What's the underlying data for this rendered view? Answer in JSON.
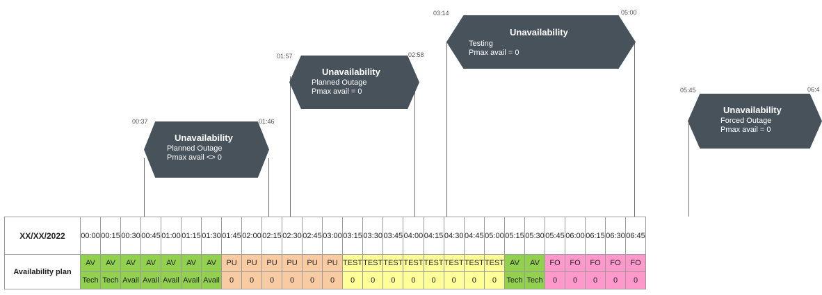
{
  "header": {
    "date": "XX/XX/2022"
  },
  "row_label": "Availability plan",
  "times": [
    "00:00",
    "00:15",
    "00:30",
    "00:45",
    "01:00",
    "01:15",
    "01:30",
    "01:45",
    "02:00",
    "02:15",
    "02:30",
    "02:45",
    "03:00",
    "03:15",
    "03:30",
    "03:45",
    "04:00",
    "04:15",
    "04:30",
    "04:45",
    "05:00",
    "05:15",
    "05:30",
    "05:45",
    "06:00",
    "06:15",
    "06:30",
    "06:45"
  ],
  "status_row": [
    {
      "text": "AV",
      "kind": "AV"
    },
    {
      "text": "AV",
      "kind": "AV"
    },
    {
      "text": "AV",
      "kind": "AV"
    },
    {
      "text": "AV",
      "kind": "AV"
    },
    {
      "text": "AV",
      "kind": "AV"
    },
    {
      "text": "AV",
      "kind": "AV"
    },
    {
      "text": "AV",
      "kind": "AV"
    },
    {
      "text": "PU",
      "kind": "PU"
    },
    {
      "text": "PU",
      "kind": "PU"
    },
    {
      "text": "PU",
      "kind": "PU"
    },
    {
      "text": "PU",
      "kind": "PU"
    },
    {
      "text": "PU",
      "kind": "PU"
    },
    {
      "text": "PU",
      "kind": "PU"
    },
    {
      "text": "TEST",
      "kind": "TEST"
    },
    {
      "text": "TEST",
      "kind": "TEST"
    },
    {
      "text": "TEST",
      "kind": "TEST"
    },
    {
      "text": "TEST",
      "kind": "TEST"
    },
    {
      "text": "TEST",
      "kind": "TEST"
    },
    {
      "text": "TEST",
      "kind": "TEST"
    },
    {
      "text": "TEST",
      "kind": "TEST"
    },
    {
      "text": "TEST",
      "kind": "TEST"
    },
    {
      "text": "AV",
      "kind": "AV"
    },
    {
      "text": "AV",
      "kind": "AV"
    },
    {
      "text": "FO",
      "kind": "FO"
    },
    {
      "text": "FO",
      "kind": "FO"
    },
    {
      "text": "FO",
      "kind": "FO"
    },
    {
      "text": "FO",
      "kind": "FO"
    },
    {
      "text": "FO",
      "kind": "FO"
    }
  ],
  "detail_row": [
    {
      "text": "Tech",
      "kind": "Tech"
    },
    {
      "text": "Tech",
      "kind": "Tech"
    },
    {
      "text": "Avail",
      "kind": "Avail"
    },
    {
      "text": "Avail",
      "kind": "Avail"
    },
    {
      "text": "Avail",
      "kind": "Avail"
    },
    {
      "text": "Avail",
      "kind": "Avail"
    },
    {
      "text": "Avail",
      "kind": "Avail"
    },
    {
      "text": "0",
      "kind": "PU"
    },
    {
      "text": "0",
      "kind": "PU"
    },
    {
      "text": "0",
      "kind": "PU"
    },
    {
      "text": "0",
      "kind": "PU"
    },
    {
      "text": "0",
      "kind": "PU"
    },
    {
      "text": "0",
      "kind": "PU"
    },
    {
      "text": "0",
      "kind": "TEST"
    },
    {
      "text": "0",
      "kind": "TEST"
    },
    {
      "text": "0",
      "kind": "TEST"
    },
    {
      "text": "0",
      "kind": "TEST"
    },
    {
      "text": "0",
      "kind": "TEST"
    },
    {
      "text": "0",
      "kind": "TEST"
    },
    {
      "text": "0",
      "kind": "TEST"
    },
    {
      "text": "0",
      "kind": "TEST"
    },
    {
      "text": "Tech",
      "kind": "Tech"
    },
    {
      "text": "Tech",
      "kind": "Tech"
    },
    {
      "text": "0",
      "kind": "FO"
    },
    {
      "text": "0",
      "kind": "FO"
    },
    {
      "text": "0",
      "kind": "FO"
    },
    {
      "text": "0",
      "kind": "FO"
    },
    {
      "text": "0",
      "kind": "FO"
    }
  ],
  "unavailabilities": [
    {
      "title": "Unavailability",
      "line1": "Planned Outage",
      "line2": "Pmax avail <> 0",
      "start": "00:37",
      "end": "01:46"
    },
    {
      "title": "Unavailability",
      "line1": "Planned Outage",
      "line2": "Pmax avail = 0",
      "start": "01:57",
      "end": "02:58"
    },
    {
      "title": "Unavailability",
      "line1": "Testing",
      "line2": "Pmax avail = 0",
      "start": "03:14",
      "end": "05:00"
    },
    {
      "title": "Unavailability",
      "line1": "Forced Outage",
      "line2": "Pmax avail = 0",
      "start": "05:45",
      "end": "06:4"
    }
  ],
  "colors": {
    "box": "#47525a",
    "AV": "#92d050",
    "PU": "#f8cba3",
    "TEST": "#ffff99",
    "FO": "#ff99cc"
  }
}
